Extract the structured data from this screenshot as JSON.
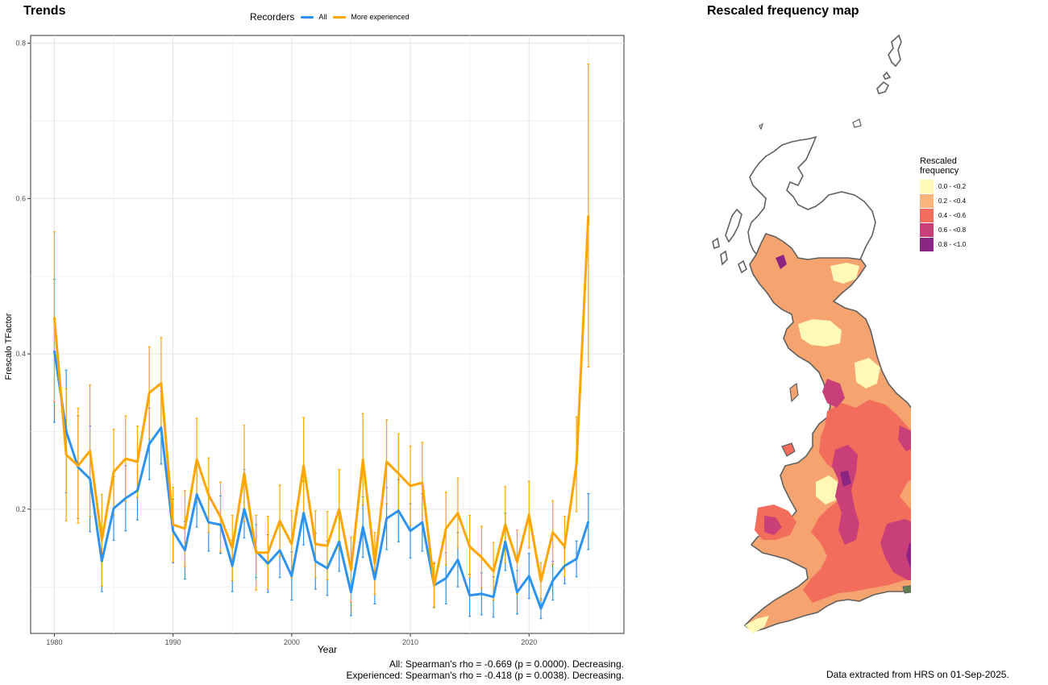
{
  "left_panel": {
    "title": "Trends",
    "legend": {
      "title": "Recorders",
      "items": [
        {
          "label": "All",
          "color": "#2e93ef"
        },
        {
          "label": "More experienced",
          "color": "#ffa500"
        }
      ]
    },
    "footer_lines": [
      "All: Spearman's rho = -0.669 (p = 0.0000). Decreasing.",
      "Experienced: Spearman's rho = -0.418 (p = 0.0038). Decreasing."
    ]
  },
  "right_panel": {
    "title": "Rescaled frequency map",
    "legend_title": "Rescaled\nfrequency",
    "legend_items": [
      {
        "label": "0.0 - <0.2",
        "color": "#fff8b7"
      },
      {
        "label": "0.2 - <0.4",
        "color": "#fbb47c"
      },
      {
        "label": "0.4 - <0.6",
        "color": "#f26d5b"
      },
      {
        "label": "0.6 - <0.8",
        "color": "#c93f78"
      },
      {
        "label": "0.8 - <1.0",
        "color": "#8a2583"
      }
    ],
    "footer": "Data extracted from HRS on 01-Sep-2025."
  },
  "chart_data": {
    "type": "line",
    "title": "Trends",
    "xlabel": "Year",
    "ylabel": "Frescalo TFactor",
    "xlim": [
      1978,
      2028
    ],
    "ylim": [
      0.04,
      0.81
    ],
    "x_ticks": [
      1980,
      1990,
      2000,
      2010,
      2020
    ],
    "y_ticks": [
      0.2,
      0.4,
      0.6,
      0.8
    ],
    "grid": true,
    "legend_position": "top",
    "x": [
      1980,
      1981,
      1982,
      1983,
      1984,
      1985,
      1986,
      1987,
      1988,
      1989,
      1990,
      1991,
      1992,
      1993,
      1994,
      1995,
      1996,
      1997,
      1998,
      1999,
      2000,
      2001,
      2002,
      2003,
      2004,
      2005,
      2006,
      2007,
      2008,
      2009,
      2010,
      2011,
      2012,
      2013,
      2014,
      2015,
      2016,
      2017,
      2018,
      2019,
      2020,
      2021,
      2022,
      2023,
      2024,
      2025
    ],
    "series": [
      {
        "name": "All",
        "color": "#2e93ef",
        "values": [
          0.404,
          0.3,
          0.254,
          0.239,
          0.133,
          0.201,
          0.214,
          0.224,
          0.284,
          0.305,
          0.172,
          0.147,
          0.219,
          0.183,
          0.18,
          0.127,
          0.2,
          0.146,
          0.13,
          0.147,
          0.114,
          0.195,
          0.133,
          0.124,
          0.158,
          0.093,
          0.177,
          0.11,
          0.188,
          0.198,
          0.172,
          0.183,
          0.102,
          0.111,
          0.135,
          0.089,
          0.091,
          0.087,
          0.158,
          0.093,
          0.114,
          0.072,
          0.108,
          0.127,
          0.136,
          0.184
        ],
        "lower": [
          0.312,
          0.221,
          0.188,
          0.171,
          0.094,
          0.16,
          0.172,
          0.186,
          0.238,
          0.258,
          0.131,
          0.11,
          0.177,
          0.146,
          0.143,
          0.094,
          0.163,
          0.112,
          0.093,
          0.112,
          0.083,
          0.154,
          0.097,
          0.089,
          0.12,
          0.063,
          0.138,
          0.078,
          0.148,
          0.158,
          0.137,
          0.146,
          0.074,
          0.078,
          0.1,
          0.062,
          0.064,
          0.061,
          0.121,
          0.065,
          0.085,
          0.059,
          0.083,
          0.104,
          0.113,
          0.148
        ],
        "upper": [
          0.496,
          0.379,
          0.32,
          0.307,
          0.172,
          0.242,
          0.256,
          0.262,
          0.33,
          0.352,
          0.213,
          0.184,
          0.261,
          0.22,
          0.217,
          0.16,
          0.251,
          0.18,
          0.167,
          0.182,
          0.145,
          0.236,
          0.169,
          0.159,
          0.196,
          0.123,
          0.216,
          0.142,
          0.228,
          0.238,
          0.207,
          0.22,
          0.13,
          0.144,
          0.17,
          0.116,
          0.118,
          0.113,
          0.195,
          0.121,
          0.143,
          0.085,
          0.133,
          0.15,
          0.159,
          0.22
        ]
      },
      {
        "name": "More experienced",
        "color": "#ffa500",
        "values": [
          0.447,
          0.27,
          0.256,
          0.275,
          0.16,
          0.248,
          0.265,
          0.261,
          0.35,
          0.362,
          0.18,
          0.175,
          0.264,
          0.218,
          0.19,
          0.15,
          0.246,
          0.144,
          0.144,
          0.185,
          0.155,
          0.256,
          0.155,
          0.153,
          0.2,
          0.122,
          0.264,
          0.13,
          0.261,
          0.246,
          0.23,
          0.234,
          0.102,
          0.175,
          0.195,
          0.152,
          0.138,
          0.12,
          0.18,
          0.132,
          0.193,
          0.107,
          0.17,
          0.152,
          0.258,
          0.578
        ],
        "lower": [
          0.338,
          0.185,
          0.182,
          0.19,
          0.101,
          0.193,
          0.21,
          0.215,
          0.291,
          0.305,
          0.132,
          0.126,
          0.211,
          0.17,
          0.145,
          0.108,
          0.184,
          0.096,
          0.097,
          0.139,
          0.112,
          0.194,
          0.112,
          0.109,
          0.149,
          0.08,
          0.205,
          0.09,
          0.207,
          0.195,
          0.179,
          0.182,
          0.073,
          0.128,
          0.15,
          0.112,
          0.098,
          0.083,
          0.131,
          0.091,
          0.15,
          0.083,
          0.129,
          0.113,
          0.197,
          0.383
        ],
        "upper": [
          0.557,
          0.355,
          0.33,
          0.36,
          0.219,
          0.303,
          0.32,
          0.307,
          0.409,
          0.421,
          0.228,
          0.224,
          0.317,
          0.266,
          0.235,
          0.192,
          0.308,
          0.192,
          0.191,
          0.231,
          0.198,
          0.318,
          0.198,
          0.197,
          0.251,
          0.164,
          0.323,
          0.17,
          0.315,
          0.297,
          0.281,
          0.286,
          0.131,
          0.222,
          0.24,
          0.192,
          0.178,
          0.157,
          0.229,
          0.173,
          0.236,
          0.131,
          0.211,
          0.191,
          0.319,
          0.773
        ]
      }
    ]
  }
}
